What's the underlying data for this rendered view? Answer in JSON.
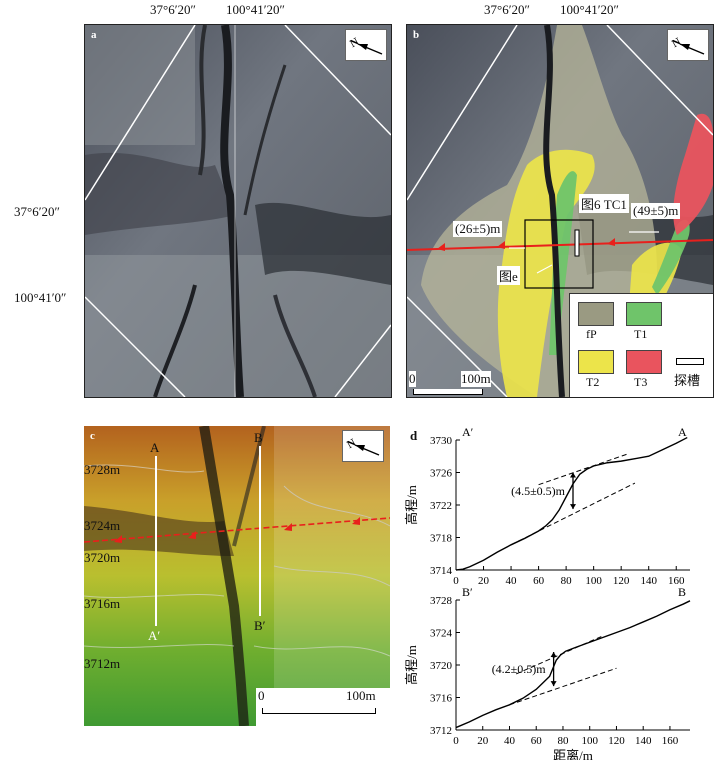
{
  "panel_a": {
    "letter": "a",
    "top_coord_1": "37°6′20″",
    "top_coord_2": "100°41′20″",
    "left_coord_1": "37°6′20″",
    "left_coord_2": "100°41′0″"
  },
  "panel_b": {
    "letter": "b",
    "top_coord_1": "37°6′20″",
    "top_coord_2": "100°41′20″",
    "offset_left": "(26±5)m",
    "offset_right": "(49±5)m",
    "ref_fig6": "图6",
    "ref_tc1": "TC1",
    "ref_fige": "图e",
    "scale_0": "0",
    "scale_100": "100m",
    "legend": {
      "fp": "fP",
      "t1": "T1",
      "t2": "T2",
      "t3": "T3",
      "trench": "探槽"
    },
    "colors": {
      "fp": "#9a9a82",
      "t1": "#6fc46a",
      "t2": "#ece44a",
      "t3": "#e9545e",
      "fault": "#e8201c"
    }
  },
  "panel_c": {
    "letter": "c",
    "contours": [
      "3728m",
      "3724m",
      "3720m",
      "3716m",
      "3712m"
    ],
    "profile_a": "A",
    "profile_a_prime": "A′",
    "profile_b": "B",
    "profile_b_prime": "B′",
    "scale_0": "0",
    "scale_100": "100m"
  },
  "panel_d": {
    "letter": "d",
    "chart_data": [
      {
        "type": "line",
        "title": "",
        "start_label": "A′",
        "end_label": "A",
        "ylabel": "高程/m",
        "xlabel": "",
        "xlim": [
          0,
          170
        ],
        "ylim": [
          3714,
          3730
        ],
        "xticks": [
          0,
          20,
          40,
          60,
          80,
          100,
          120,
          140,
          160
        ],
        "yticks": [
          3714,
          3718,
          3722,
          3726,
          3730
        ],
        "annotation": "(4.5±0.5)m",
        "x": [
          0,
          5,
          10,
          20,
          30,
          40,
          50,
          60,
          65,
          70,
          75,
          80,
          85,
          90,
          95,
          100,
          110,
          120,
          130,
          140,
          150,
          160,
          168
        ],
        "y": [
          3714,
          3714.1,
          3714.4,
          3715.2,
          3716.2,
          3717.1,
          3717.9,
          3718.8,
          3719.4,
          3720.2,
          3721.4,
          3723,
          3724.6,
          3725.8,
          3726.4,
          3726.8,
          3727.2,
          3727.4,
          3727.7,
          3728,
          3728.8,
          3729.6,
          3730.3
        ],
        "upper_trend": [
          [
            60,
            3724.5
          ],
          [
            125,
            3728.3
          ]
        ],
        "lower_trend": [
          [
            40,
            3717.1
          ],
          [
            130,
            3724.7
          ]
        ]
      },
      {
        "type": "line",
        "title": "",
        "start_label": "B′",
        "end_label": "B",
        "ylabel": "高程/m",
        "xlabel": "距离/m",
        "xlim": [
          0,
          175
        ],
        "ylim": [
          3712,
          3728
        ],
        "xticks": [
          0,
          20,
          40,
          60,
          80,
          100,
          120,
          140,
          160
        ],
        "yticks": [
          3712,
          3716,
          3720,
          3724,
          3728
        ],
        "annotation": "(4.2±0.5)m",
        "x": [
          0,
          10,
          20,
          30,
          40,
          50,
          60,
          65,
          70,
          73,
          75,
          78,
          82,
          90,
          100,
          110,
          120,
          130,
          140,
          150,
          160,
          170,
          175
        ],
        "y": [
          3712.3,
          3713,
          3713.8,
          3714.5,
          3715.1,
          3715.9,
          3717,
          3717.8,
          3718.6,
          3719.8,
          3720.6,
          3721.2,
          3721.7,
          3722.2,
          3722.8,
          3723.4,
          3724,
          3724.6,
          3725.3,
          3726,
          3726.8,
          3727.5,
          3727.9
        ],
        "upper_trend": [
          [
            45,
            3718.9
          ],
          [
            110,
            3723.6
          ]
        ],
        "lower_trend": [
          [
            40,
            3715.1
          ],
          [
            120,
            3719.6
          ]
        ]
      }
    ]
  }
}
